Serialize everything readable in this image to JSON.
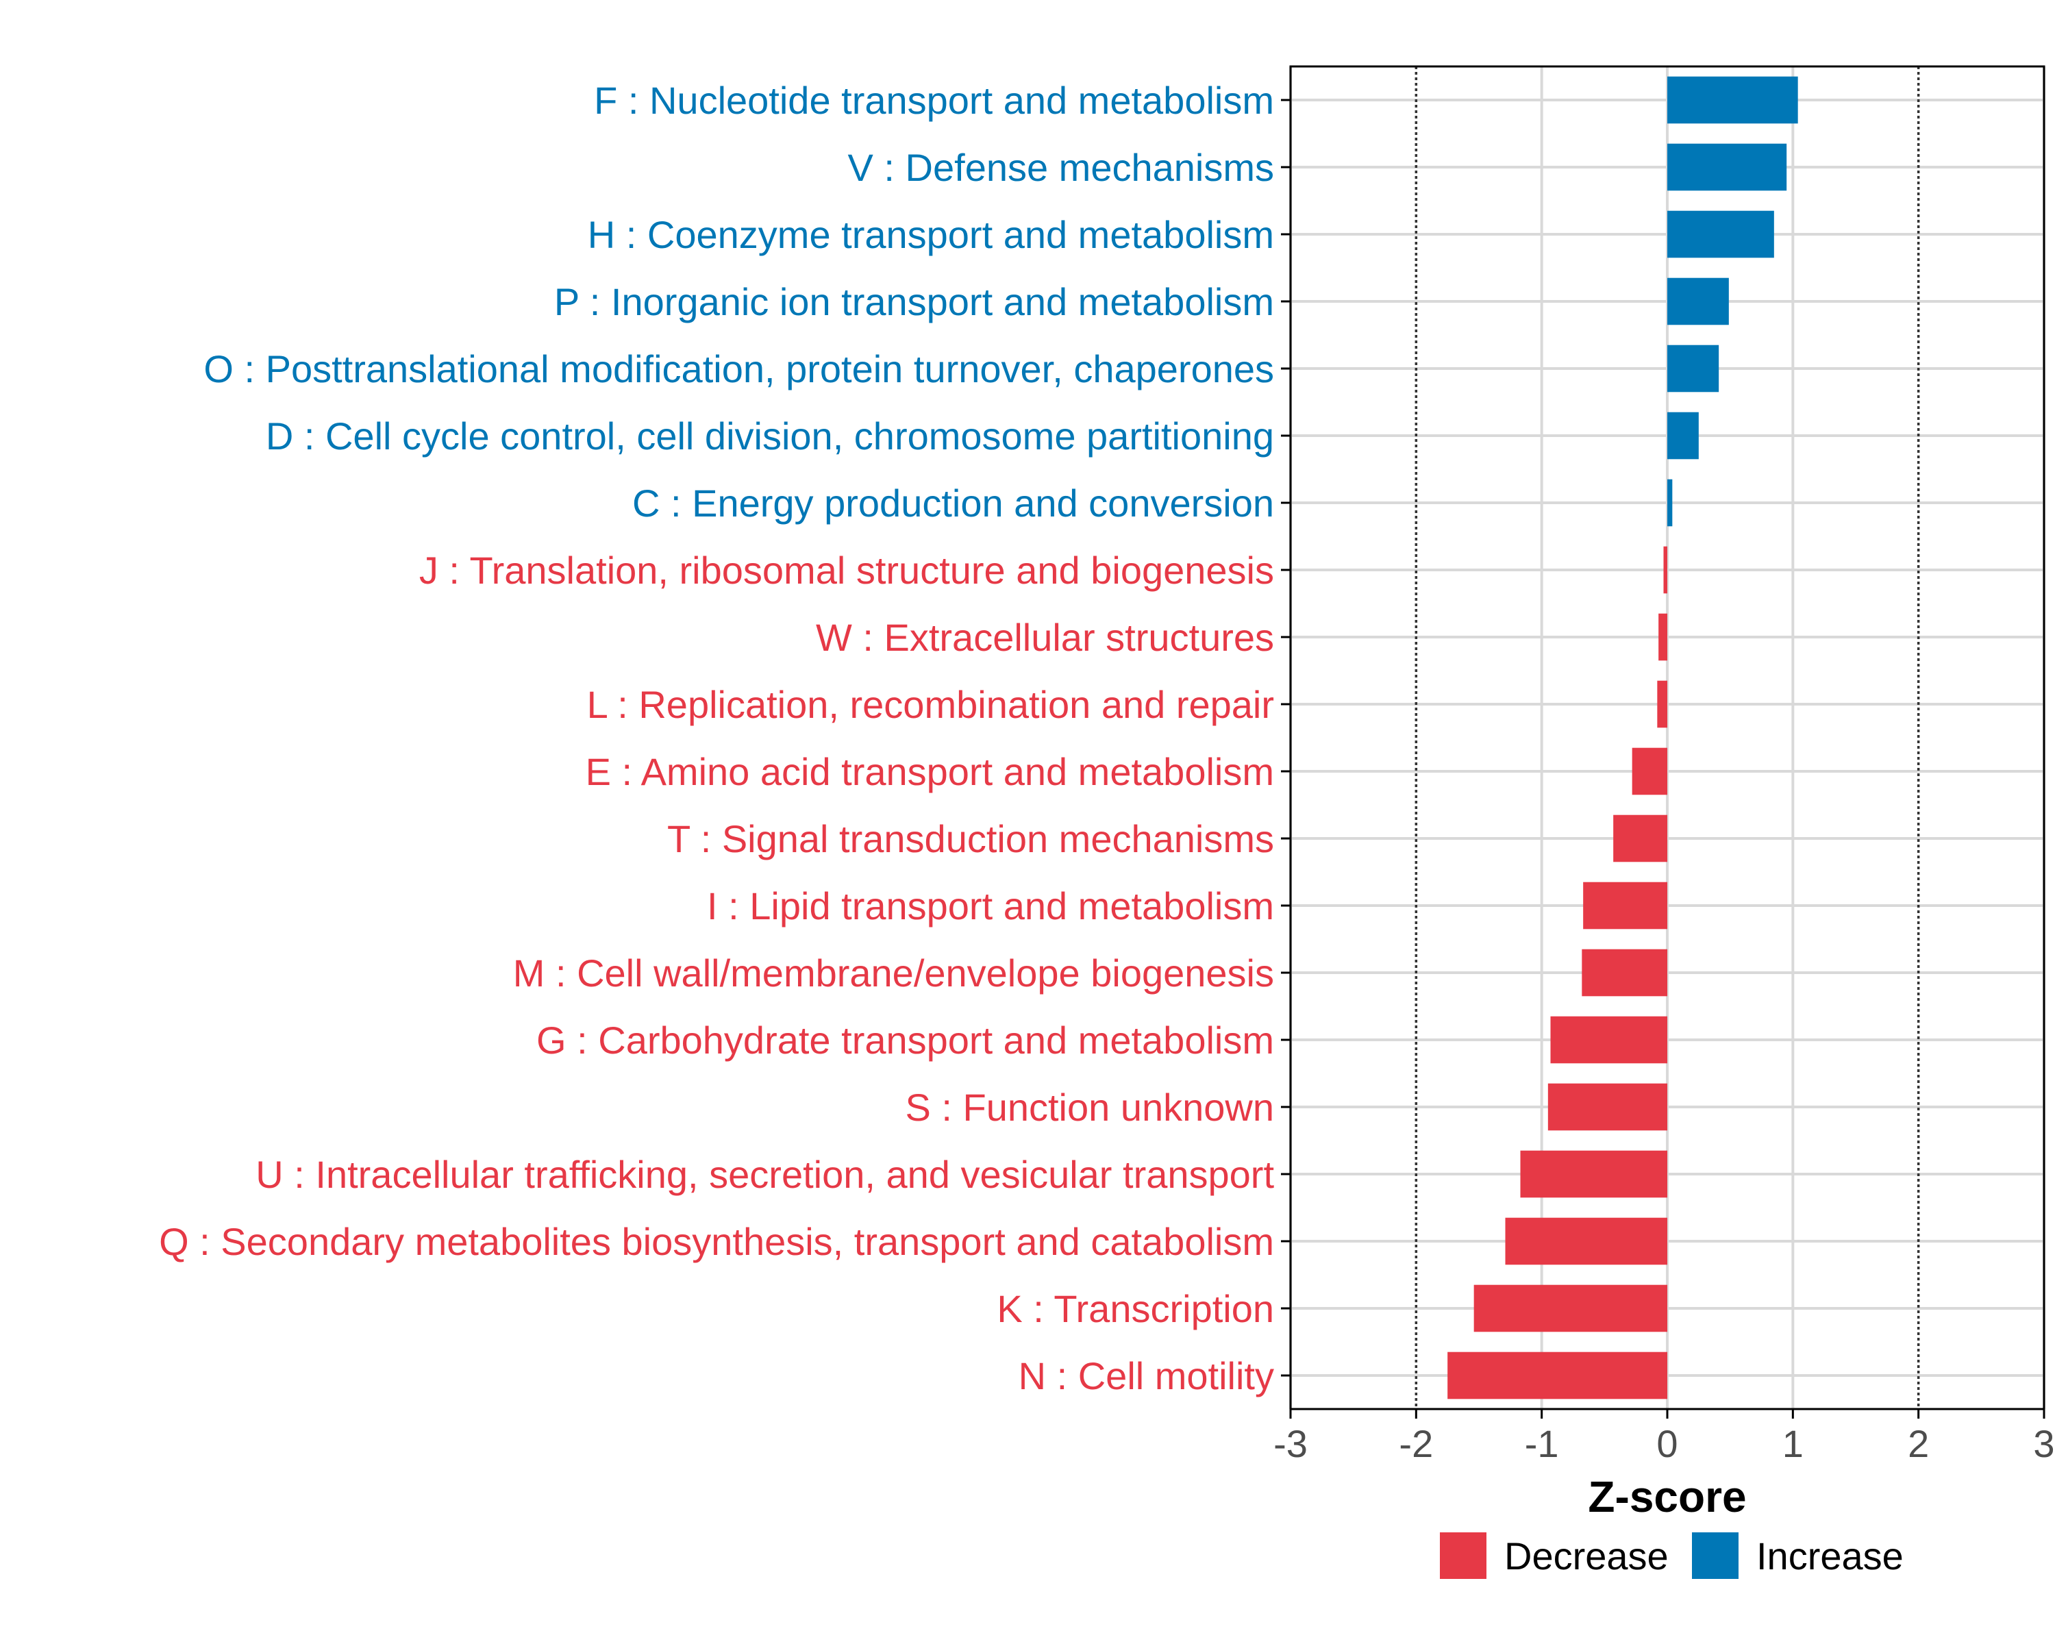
{
  "colors": {
    "decrease": "#e63946",
    "increase": "#0077b6",
    "grid": "#d9d9d9",
    "axis": "#000000",
    "tick_label": "#4d4d4d",
    "refline": "#333333"
  },
  "chart_data": {
    "type": "bar",
    "orientation": "horizontal",
    "xlabel": "Z-score",
    "xlim": [
      -3,
      3
    ],
    "xticks": [
      -3,
      -2,
      -1,
      0,
      1,
      2,
      3
    ],
    "xtick_labels": [
      "-3",
      "-2",
      "-1",
      "0",
      "1",
      "2",
      "3"
    ],
    "reference_lines": [
      -2,
      2
    ],
    "grid": true,
    "legend_position": "bottom",
    "legend": [
      {
        "key": "decrease",
        "label": "Decrease"
      },
      {
        "key": "increase",
        "label": "Increase"
      }
    ],
    "categories": [
      {
        "label": "F : Nucleotide transport and metabolism",
        "value": 1.04,
        "group": "increase"
      },
      {
        "label": "V : Defense mechanisms",
        "value": 0.95,
        "group": "increase"
      },
      {
        "label": "H : Coenzyme transport and metabolism",
        "value": 0.85,
        "group": "increase"
      },
      {
        "label": "P : Inorganic ion transport and metabolism",
        "value": 0.49,
        "group": "increase"
      },
      {
        "label": "O : Posttranslational modification, protein turnover, chaperones",
        "value": 0.41,
        "group": "increase"
      },
      {
        "label": "D : Cell cycle control, cell division, chromosome partitioning",
        "value": 0.25,
        "group": "increase"
      },
      {
        "label": "C : Energy production and conversion",
        "value": 0.04,
        "group": "increase"
      },
      {
        "label": "J : Translation, ribosomal structure and biogenesis",
        "value": -0.03,
        "group": "decrease"
      },
      {
        "label": "W : Extracellular structures",
        "value": -0.07,
        "group": "decrease"
      },
      {
        "label": "L : Replication, recombination and repair",
        "value": -0.08,
        "group": "decrease"
      },
      {
        "label": "E : Amino acid transport and metabolism",
        "value": -0.28,
        "group": "decrease"
      },
      {
        "label": "T : Signal transduction mechanisms",
        "value": -0.43,
        "group": "decrease"
      },
      {
        "label": "I : Lipid transport and metabolism",
        "value": -0.67,
        "group": "decrease"
      },
      {
        "label": "M : Cell wall/membrane/envelope biogenesis",
        "value": -0.68,
        "group": "decrease"
      },
      {
        "label": "G : Carbohydrate transport and metabolism",
        "value": -0.93,
        "group": "decrease"
      },
      {
        "label": "S : Function unknown",
        "value": -0.95,
        "group": "decrease"
      },
      {
        "label": "U : Intracellular trafficking, secretion, and vesicular transport",
        "value": -1.17,
        "group": "decrease"
      },
      {
        "label": "Q : Secondary metabolites biosynthesis, transport and catabolism",
        "value": -1.29,
        "group": "decrease"
      },
      {
        "label": "K : Transcription",
        "value": -1.54,
        "group": "decrease"
      },
      {
        "label": "N : Cell motility",
        "value": -1.75,
        "group": "decrease"
      }
    ]
  }
}
